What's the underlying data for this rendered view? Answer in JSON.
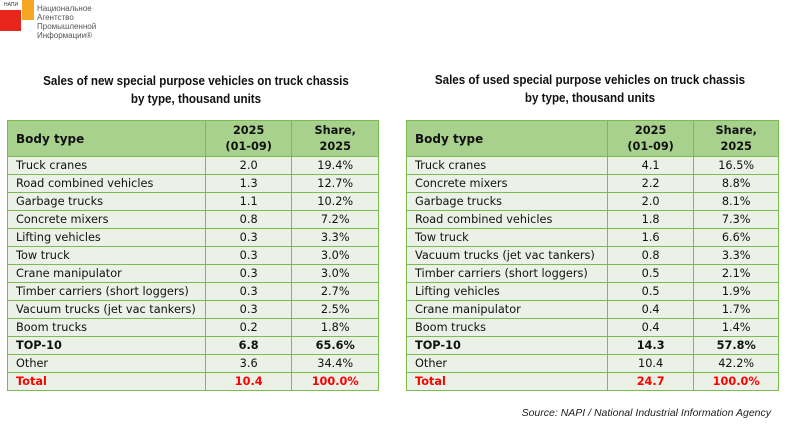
{
  "logo": {
    "short": "НАПИ",
    "name_lines": [
      "Национальное",
      "Агентство",
      "Промышленной",
      "Информации®"
    ]
  },
  "tables": [
    {
      "title_line1": "Sales of new special purpose vehicles on truck chassis",
      "title_line2": "by type, thousand units",
      "headers": {
        "body_type": "Body type",
        "period_l1": "2025",
        "period_l2": "(01-09)",
        "share_l1": "Share,",
        "share_l2": "2025"
      },
      "rows": [
        {
          "type": "Truck cranes",
          "value": "2.0",
          "share": "19.4%"
        },
        {
          "type": "Road combined vehicles",
          "value": "1.3",
          "share": "12.7%"
        },
        {
          "type": "Garbage trucks",
          "value": "1.1",
          "share": "10.2%"
        },
        {
          "type": "Concrete mixers",
          "value": "0.8",
          "share": "7.2%"
        },
        {
          "type": "Lifting vehicles",
          "value": "0.3",
          "share": "3.3%"
        },
        {
          "type": "Tow truck",
          "value": "0.3",
          "share": "3.0%"
        },
        {
          "type": "Crane manipulator",
          "value": "0.3",
          "share": "3.0%"
        },
        {
          "type": "Timber carriers (short loggers)",
          "value": "0.3",
          "share": "2.7%"
        },
        {
          "type": "Vacuum trucks (jet vac tankers)",
          "value": "0.3",
          "share": "2.5%"
        },
        {
          "type": "Boom trucks",
          "value": "0.2",
          "share": "1.8%"
        }
      ],
      "top10": {
        "type": "TOP-10",
        "value": "6.8",
        "share": "65.6%"
      },
      "other": {
        "type": "Other",
        "value": "3.6",
        "share": "34.4%"
      },
      "total": {
        "type": "Total",
        "value": "10.4",
        "share": "100.0%"
      }
    },
    {
      "title_line1": "Sales of used special purpose vehicles on truck chassis",
      "title_line2": "by type, thousand units",
      "headers": {
        "body_type": "Body type",
        "period_l1": "2025",
        "period_l2": "(01-09)",
        "share_l1": "Share,",
        "share_l2": "2025"
      },
      "rows": [
        {
          "type": "Truck cranes",
          "value": "4.1",
          "share": "16.5%"
        },
        {
          "type": "Concrete mixers",
          "value": "2.2",
          "share": "8.8%"
        },
        {
          "type": "Garbage trucks",
          "value": "2.0",
          "share": "8.1%"
        },
        {
          "type": "Road combined vehicles",
          "value": "1.8",
          "share": "7.3%"
        },
        {
          "type": "Tow truck",
          "value": "1.6",
          "share": "6.6%"
        },
        {
          "type": "Vacuum trucks (jet vac tankers)",
          "value": "0.8",
          "share": "3.3%"
        },
        {
          "type": "Timber carriers (short loggers)",
          "value": "0.5",
          "share": "2.1%"
        },
        {
          "type": "Lifting vehicles",
          "value": "0.5",
          "share": "1.9%"
        },
        {
          "type": "Crane manipulator",
          "value": "0.4",
          "share": "1.7%"
        },
        {
          "type": "Boom trucks",
          "value": "0.4",
          "share": "1.4%"
        }
      ],
      "top10": {
        "type": "TOP-10",
        "value": "14.3",
        "share": "57.8%"
      },
      "other": {
        "type": "Other",
        "value": "10.4",
        "share": "42.2%"
      },
      "total": {
        "type": "Total",
        "value": "24.7",
        "share": "100.0%"
      }
    }
  ],
  "source": "Source: NAPI / National Industrial Information Agency",
  "colors": {
    "header_bg": "#a9d18e",
    "row_bg": "#ebf1e6",
    "border": "#7cbb4e",
    "total_text": "#ff0000"
  }
}
